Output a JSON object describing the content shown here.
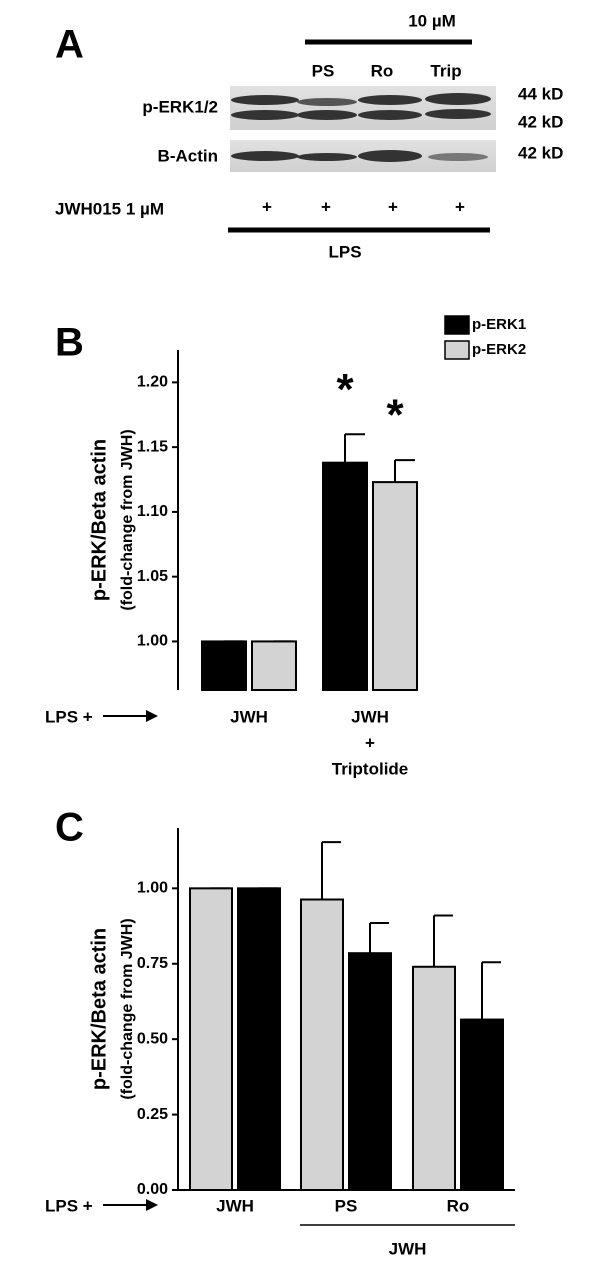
{
  "blot": {
    "panel": "A",
    "concentration": "10 µM",
    "lanes": [
      "PS",
      "Ro",
      "Trip"
    ],
    "rows": [
      {
        "label": "p-ERK1/2",
        "sizes": [
          "44 kD",
          "42 kD"
        ]
      },
      {
        "label": "B-Actin",
        "sizes": [
          "42 kD"
        ]
      }
    ],
    "treatment": "JWH015 1 µM",
    "marks": [
      "+",
      "+",
      "+",
      "+"
    ],
    "base": "LPS"
  },
  "chart_data": [
    {
      "type": "bar",
      "panel": "B",
      "ylabel": "p-ERK/Beta actin",
      "ylabel2": "(fold-change from JWH)",
      "prefix": "LPS +",
      "categories": [
        [
          "JWH"
        ],
        [
          "JWH",
          "+",
          "Triptolide"
        ]
      ],
      "series": [
        {
          "name": "p-ERK1",
          "color": "#000000",
          "values": [
            1.0,
            1.138
          ],
          "errors": [
            0,
            0.022
          ],
          "markers": [
            null,
            "*"
          ]
        },
        {
          "name": "p-ERK2",
          "color": "#d3d3d3",
          "values": [
            1.0,
            1.123
          ],
          "errors": [
            0,
            0.017
          ],
          "markers": [
            null,
            "*"
          ]
        }
      ],
      "ylim": [
        0.9625,
        1.225
      ],
      "yticks": [
        {
          "value": 1.0,
          "label": "1.00"
        },
        {
          "value": 1.05,
          "label": "1.05"
        },
        {
          "value": 1.1,
          "label": "1.10"
        },
        {
          "value": 1.15,
          "label": "1.15"
        },
        {
          "value": 1.2,
          "label": "1.20"
        }
      ],
      "legend": "top-right"
    },
    {
      "type": "bar",
      "panel": "C",
      "ylabel": "p-ERK/Beta actin",
      "ylabel2": "(fold-change from JWH)",
      "prefix": "LPS +",
      "categories": [
        [
          "JWH"
        ],
        [
          "PS"
        ],
        [
          "Ro"
        ]
      ],
      "group_label": "JWH",
      "series": [
        {
          "color": "#d3d3d3",
          "values": [
            1.0,
            0.963,
            0.74
          ],
          "errors": [
            0,
            0.19,
            0.17
          ]
        },
        {
          "color": "#000000",
          "values": [
            1.0,
            0.785,
            0.565
          ],
          "errors": [
            0,
            0.1,
            0.19
          ]
        }
      ],
      "ylim": [
        0,
        1.2
      ],
      "yticks": [
        {
          "value": 0,
          "label": "0.00"
        },
        {
          "value": 0.25,
          "label": "0.25"
        },
        {
          "value": 0.5,
          "label": "0.50"
        },
        {
          "value": 0.75,
          "label": "0.75"
        },
        {
          "value": 1.0,
          "label": "1.00"
        }
      ]
    }
  ]
}
